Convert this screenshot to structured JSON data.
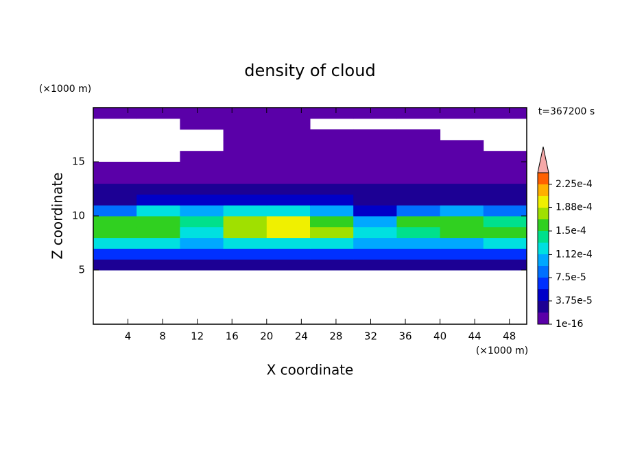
{
  "chart_data": {
    "type": "contour",
    "title": "density of cloud",
    "y_unit": "(×1000 m)",
    "x_unit": "(×1000 m)",
    "time_label": "t=367200 s",
    "xlabel": "X coordinate",
    "ylabel": "Z coordinate",
    "xlim": [
      0,
      50
    ],
    "ylim": [
      0,
      20
    ],
    "xticks": [
      4,
      8,
      12,
      16,
      20,
      24,
      28,
      32,
      36,
      40,
      44,
      48
    ],
    "yticks": [
      5,
      10,
      15
    ],
    "x_edges": [
      0,
      5,
      10,
      15,
      20,
      25,
      30,
      35,
      40,
      45,
      50
    ],
    "z_edges": [
      5,
      6,
      7,
      8,
      9,
      10,
      11,
      12,
      13,
      14,
      15,
      16,
      17,
      18,
      19,
      20
    ],
    "values": [
      [
        3e-05,
        3e-05,
        3e-05,
        3e-05,
        3e-05,
        3e-05,
        3e-05,
        3e-05,
        3e-05,
        3e-05
      ],
      [
        6e-05,
        6e-05,
        6e-05,
        6e-05,
        6e-05,
        6e-05,
        6e-05,
        6e-05,
        6e-05,
        6e-05
      ],
      [
        0.00013,
        0.00012,
        0.0001,
        0.00012,
        0.00013,
        0.00012,
        0.0001,
        0.00011,
        0.00011,
        0.00012
      ],
      [
        0.00016,
        0.00016,
        0.00013,
        0.00017,
        0.00019,
        0.00017,
        0.00012,
        0.00014,
        0.00015,
        0.00015
      ],
      [
        0.00015,
        0.00016,
        0.00014,
        0.00017,
        0.00019,
        0.00016,
        0.00011,
        0.00015,
        0.00015,
        0.00014
      ],
      [
        8e-05,
        0.00012,
        0.0001,
        0.00012,
        0.00013,
        0.00011,
        5e-05,
        9e-05,
        0.0001,
        8e-05
      ],
      [
        3e-05,
        4e-05,
        4e-05,
        4e-05,
        4e-05,
        4e-05,
        2e-05,
        3e-05,
        3e-05,
        3e-05
      ],
      [
        2e-05,
        2e-05,
        2e-05,
        2e-05,
        2e-05,
        2e-05,
        2e-05,
        2e-05,
        2e-05,
        2e-05
      ],
      [
        1e-05,
        1e-05,
        1e-05,
        1e-05,
        1e-05,
        1e-05,
        1e-05,
        1e-05,
        1e-05,
        1e-05
      ],
      [
        5e-06,
        5e-06,
        5e-06,
        5e-06,
        5e-06,
        5e-06,
        5e-06,
        5e-06,
        5e-06,
        5e-06
      ],
      [
        null,
        null,
        5e-06,
        5e-06,
        5e-06,
        5e-06,
        5e-06,
        5e-06,
        5e-06,
        5e-06
      ],
      [
        null,
        null,
        null,
        5e-06,
        5e-06,
        5e-06,
        5e-06,
        5e-06,
        5e-06,
        null
      ],
      [
        null,
        null,
        null,
        5e-06,
        5e-06,
        5e-06,
        5e-06,
        5e-06,
        null,
        null
      ],
      [
        null,
        null,
        5e-06,
        5e-06,
        5e-06,
        null,
        null,
        null,
        null,
        null
      ],
      [
        5e-06,
        5e-06,
        5e-06,
        5e-06,
        5e-06,
        5e-06,
        5e-06,
        5e-06,
        5e-06,
        5e-06
      ]
    ],
    "levels": [
      1e-16,
      1.875e-05,
      3.75e-05,
      5.625e-05,
      7.5e-05,
      9.375e-05,
      0.0001125,
      0.00013125,
      0.00015,
      0.00016875,
      0.0001875,
      0.00020625,
      0.000225,
      0.00024375
    ],
    "colors": [
      "#5a00a8",
      "#1c0094",
      "#0000c8",
      "#0030ff",
      "#0070ff",
      "#00a8ff",
      "#00e0e0",
      "#00e08c",
      "#30d020",
      "#a0e000",
      "#f0f000",
      "#ffb000",
      "#ff6000"
    ],
    "extend_color": "#f5a8a8",
    "cbar_ticks": [
      {
        "value": 1e-16,
        "label": "1e-16"
      },
      {
        "value": 3.75e-05,
        "label": "3.75e-5"
      },
      {
        "value": 7.5e-05,
        "label": "7.5e-5"
      },
      {
        "value": 0.000112,
        "label": "1.12e-4"
      },
      {
        "value": 0.00015,
        "label": "1.5e-4"
      },
      {
        "value": 0.000188,
        "label": "1.88e-4"
      },
      {
        "value": 0.000225,
        "label": "2.25e-4"
      }
    ]
  }
}
